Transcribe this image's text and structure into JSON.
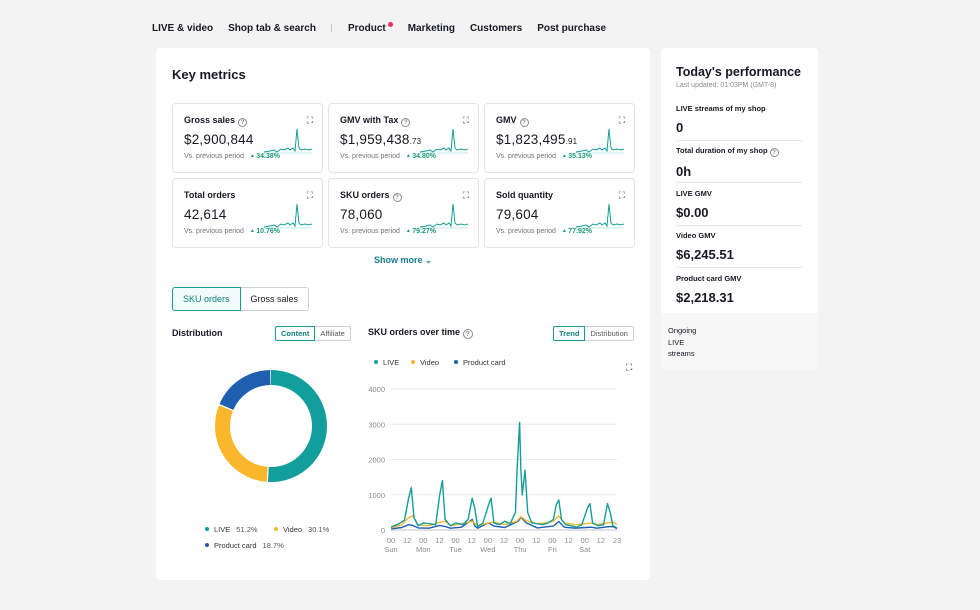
{
  "nav": {
    "items": [
      "LIVE & video",
      "Shop tab & search",
      "Product",
      "Marketing",
      "Customers",
      "Post purchase"
    ]
  },
  "key_metrics": {
    "title": "Key metrics",
    "compare_label": "Vs. previous period",
    "cards": [
      {
        "label": "Gross sales",
        "value": "$2,900,844",
        "cents": "",
        "change": "34.38%",
        "help": true
      },
      {
        "label": "GMV with Tax",
        "value": "$1,959,438",
        "cents": ".73",
        "change": "34.80%",
        "help": true
      },
      {
        "label": "GMV",
        "value": "$1,823,495",
        "cents": ".91",
        "change": "35.13%",
        "help": true
      },
      {
        "label": "Total orders",
        "value": "42,614",
        "cents": "",
        "change": "10.76%",
        "help": false
      },
      {
        "label": "SKU orders",
        "value": "78,060",
        "cents": "",
        "change": "79.27%",
        "help": true
      },
      {
        "label": "Sold quantity",
        "value": "79,604",
        "cents": "",
        "change": "77.92%",
        "help": false
      }
    ],
    "show_more": "Show more"
  },
  "tabs": {
    "sku_orders": "SKU orders",
    "gross_sales": "Gross sales"
  },
  "distribution": {
    "title": "Distribution",
    "toggle": {
      "content": "Content",
      "affiliate": "Affiliate"
    },
    "legend": [
      {
        "name": "LIVE",
        "pct": "51.2%",
        "color": "#129e9a"
      },
      {
        "name": "Video",
        "pct": "30.1%",
        "color": "#fbb72c"
      },
      {
        "name": "Product card",
        "pct": "18.7%",
        "color": "#1f5faf"
      }
    ]
  },
  "trend": {
    "title": "SKU orders over time",
    "toggle": {
      "trend": "Trend",
      "distribution": "Distribution"
    }
  },
  "chart_data": {
    "type": "line",
    "title": "SKU orders over time",
    "ylim": [
      0,
      4000
    ],
    "yticks": [
      0,
      1000,
      2000,
      3000,
      4000
    ],
    "xticks": [
      {
        "hour": "00",
        "day": "Sun"
      },
      {
        "hour": "12",
        "day": ""
      },
      {
        "hour": "00",
        "day": "Mon"
      },
      {
        "hour": "12",
        "day": ""
      },
      {
        "hour": "00",
        "day": "Tue"
      },
      {
        "hour": "12",
        "day": ""
      },
      {
        "hour": "00",
        "day": "Wed"
      },
      {
        "hour": "12",
        "day": ""
      },
      {
        "hour": "00",
        "day": "Thu"
      },
      {
        "hour": "12",
        "day": ""
      },
      {
        "hour": "00",
        "day": "Fri"
      },
      {
        "hour": "12",
        "day": ""
      },
      {
        "hour": "00",
        "day": "Sat"
      },
      {
        "hour": "12",
        "day": ""
      },
      {
        "hour": "23",
        "day": ""
      }
    ],
    "x_max": 167,
    "series": [
      {
        "name": "LIVE",
        "color": "#129e9a",
        "points": [
          [
            0,
            80
          ],
          [
            6,
            180
          ],
          [
            10,
            280
          ],
          [
            13,
            900
          ],
          [
            15,
            1200
          ],
          [
            17,
            350
          ],
          [
            20,
            120
          ],
          [
            24,
            200
          ],
          [
            28,
            180
          ],
          [
            33,
            150
          ],
          [
            36,
            1000
          ],
          [
            38,
            1400
          ],
          [
            40,
            300
          ],
          [
            44,
            120
          ],
          [
            48,
            200
          ],
          [
            53,
            150
          ],
          [
            57,
            300
          ],
          [
            60,
            900
          ],
          [
            62,
            600
          ],
          [
            64,
            100
          ],
          [
            68,
            200
          ],
          [
            72,
            700
          ],
          [
            74,
            900
          ],
          [
            76,
            200
          ],
          [
            80,
            150
          ],
          [
            84,
            250
          ],
          [
            88,
            180
          ],
          [
            92,
            500
          ],
          [
            93,
            1600
          ],
          [
            95,
            3050
          ],
          [
            96,
            1700
          ],
          [
            97,
            1000
          ],
          [
            99,
            1700
          ],
          [
            101,
            500
          ],
          [
            104,
            200
          ],
          [
            108,
            180
          ],
          [
            112,
            150
          ],
          [
            116,
            200
          ],
          [
            120,
            300
          ],
          [
            122,
            700
          ],
          [
            124,
            850
          ],
          [
            126,
            300
          ],
          [
            129,
            150
          ],
          [
            133,
            120
          ],
          [
            137,
            80
          ],
          [
            141,
            150
          ],
          [
            145,
            600
          ],
          [
            147,
            750
          ],
          [
            149,
            200
          ],
          [
            153,
            120
          ],
          [
            157,
            150
          ],
          [
            160,
            750
          ],
          [
            162,
            500
          ],
          [
            164,
            120
          ],
          [
            167,
            60
          ]
        ]
      },
      {
        "name": "Video",
        "color": "#fbb72c",
        "points": [
          [
            0,
            60
          ],
          [
            8,
            150
          ],
          [
            13,
            350
          ],
          [
            16,
            400
          ],
          [
            20,
            150
          ],
          [
            28,
            120
          ],
          [
            36,
            220
          ],
          [
            40,
            250
          ],
          [
            44,
            120
          ],
          [
            52,
            180
          ],
          [
            60,
            250
          ],
          [
            64,
            120
          ],
          [
            72,
            200
          ],
          [
            76,
            220
          ],
          [
            84,
            150
          ],
          [
            93,
            250
          ],
          [
            96,
            380
          ],
          [
            100,
            260
          ],
          [
            108,
            180
          ],
          [
            114,
            200
          ],
          [
            120,
            250
          ],
          [
            124,
            400
          ],
          [
            128,
            200
          ],
          [
            136,
            150
          ],
          [
            144,
            180
          ],
          [
            148,
            200
          ],
          [
            152,
            150
          ],
          [
            160,
            200
          ],
          [
            164,
            220
          ],
          [
            167,
            150
          ]
        ]
      },
      {
        "name": "Product card",
        "color": "#1f5faf",
        "points": [
          [
            0,
            30
          ],
          [
            8,
            70
          ],
          [
            13,
            150
          ],
          [
            16,
            130
          ],
          [
            20,
            60
          ],
          [
            28,
            50
          ],
          [
            36,
            130
          ],
          [
            40,
            100
          ],
          [
            44,
            50
          ],
          [
            52,
            80
          ],
          [
            60,
            300
          ],
          [
            62,
            110
          ],
          [
            64,
            50
          ],
          [
            72,
            200
          ],
          [
            76,
            110
          ],
          [
            84,
            70
          ],
          [
            94,
            250
          ],
          [
            96,
            360
          ],
          [
            100,
            200
          ],
          [
            108,
            60
          ],
          [
            120,
            110
          ],
          [
            124,
            240
          ],
          [
            128,
            80
          ],
          [
            136,
            50
          ],
          [
            144,
            70
          ],
          [
            148,
            80
          ],
          [
            152,
            50
          ],
          [
            160,
            90
          ],
          [
            164,
            100
          ],
          [
            167,
            40
          ]
        ]
      }
    ],
    "donut": {
      "labels": [
        "LIVE",
        "Video",
        "Product card"
      ],
      "values": [
        51.2,
        30.1,
        18.7
      ]
    }
  },
  "today": {
    "title": "Today's performance",
    "updated": "Last updated: 01:03PM (GMT-8)",
    "rows": [
      {
        "label": "LIVE streams of my shop",
        "value": "0",
        "help": false
      },
      {
        "label": "Total duration of my shop",
        "value": "0h",
        "help": true
      },
      {
        "label": "LIVE GMV",
        "value": "$0.00",
        "help": false
      },
      {
        "label": "Video GMV",
        "value": "$6,245.51",
        "help": false
      },
      {
        "label": "Product card GMV",
        "value": "$2,218.31",
        "help": false
      }
    ],
    "ongoing": "Ongoing LIVE streams"
  },
  "icons": {
    "help": "?",
    "expand": "⛶",
    "chevron": "⌄"
  }
}
